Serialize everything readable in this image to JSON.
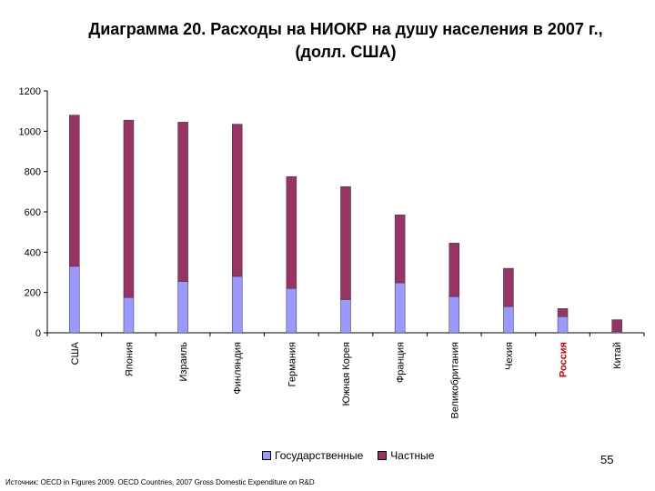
{
  "chart_data": {
    "type": "bar",
    "stacked": true,
    "title_line1": "Диаграмма 20. Расходы на НИОКР на душу населения в 2007 г.,",
    "title_line2": "(долл. США)",
    "categories": [
      "США",
      "Япония",
      "Израиль",
      "Финляндия",
      "Германия",
      "Южная Корея",
      "Франция",
      "Великобритания",
      "Чехия",
      "Россия",
      "Китай"
    ],
    "highlight_category": "Россия",
    "highlight_color": "#cc0000",
    "series": [
      {
        "name": "Государственные",
        "color": "#9999ff",
        "values": [
          330,
          175,
          255,
          280,
          220,
          165,
          248,
          180,
          130,
          80,
          5
        ]
      },
      {
        "name": "Частные",
        "color": "#993366",
        "values": [
          750,
          880,
          790,
          755,
          555,
          560,
          337,
          265,
          190,
          40,
          60
        ]
      }
    ],
    "ylim": [
      0,
      1200
    ],
    "yticks": [
      0,
      200,
      400,
      600,
      800,
      1000,
      1200
    ],
    "grid": false,
    "legend_position": "bottom"
  },
  "page_number": "55",
  "source": "Источник: OECD in Figures 2009. OECD Countries, 2007 Gross Domestic Expenditure on R&D"
}
